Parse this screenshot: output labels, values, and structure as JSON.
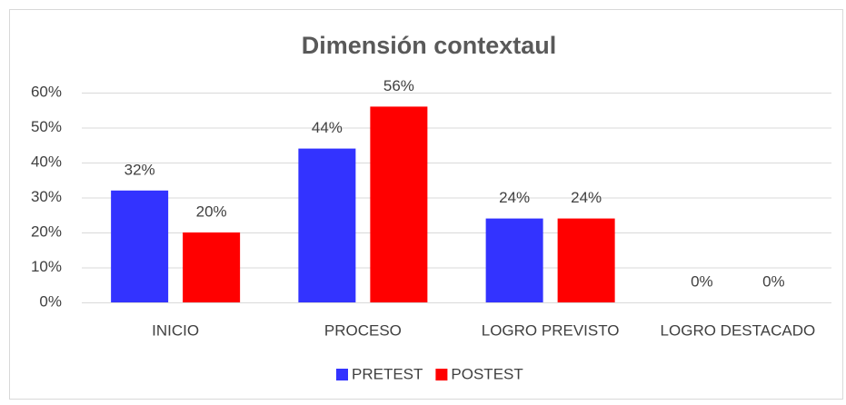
{
  "chart_data": {
    "type": "bar",
    "title": "Dimensión contextaul",
    "categories": [
      "INICIO",
      "PROCESO",
      "LOGRO PREVISTO",
      "LOGRO DESTACADO"
    ],
    "series": [
      {
        "name": "PRETEST",
        "color": "#3333ff",
        "values": [
          32,
          44,
          24,
          0
        ],
        "value_labels": [
          "32%",
          "44%",
          "24%",
          "0%"
        ]
      },
      {
        "name": "POSTEST",
        "color": "#ff0000",
        "values": [
          20,
          56,
          24,
          0
        ],
        "value_labels": [
          "20%",
          "56%",
          "24%",
          "0%"
        ]
      }
    ],
    "ylim": [
      0,
      60
    ],
    "yticks": [
      {
        "value": 0,
        "label": "0%"
      },
      {
        "value": 10,
        "label": "10%"
      },
      {
        "value": 20,
        "label": "20%"
      },
      {
        "value": 30,
        "label": "30%"
      },
      {
        "value": 40,
        "label": "40%"
      },
      {
        "value": 50,
        "label": "50%"
      },
      {
        "value": 60,
        "label": "60%"
      }
    ],
    "grid": true,
    "legend": "bottom"
  }
}
